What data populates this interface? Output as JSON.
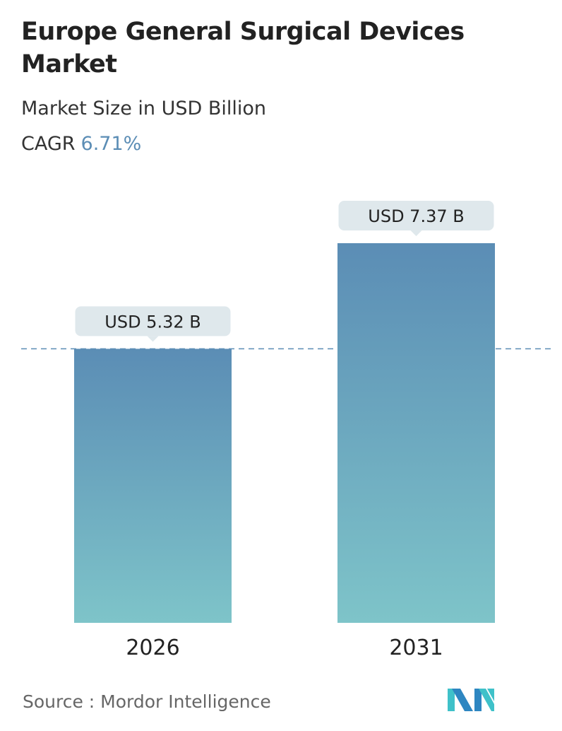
{
  "header": {
    "title": "Europe General Surgical Devices Market",
    "subtitle": "Market Size in USD Billion",
    "cagr_label": "CAGR",
    "cagr_value": "6.71%"
  },
  "chart_data": {
    "type": "bar",
    "categories": [
      "2026",
      "2031"
    ],
    "values": [
      5.32,
      7.37
    ],
    "data_labels": [
      "USD 5.32 B",
      "USD 7.37 B"
    ],
    "ylabel": "Market Size in USD Billion",
    "ylim": [
      0,
      7.37
    ],
    "reference_line_value": 5.32,
    "grid": false,
    "colors": {
      "bar_top": "#5b8db5",
      "bar_bottom": "#7ec4c9",
      "label_bg": "#dfe8ec",
      "ref_line": "#5b8db5"
    }
  },
  "footer": {
    "source": "Source :  Mordor Intelligence",
    "logo": "MI"
  }
}
